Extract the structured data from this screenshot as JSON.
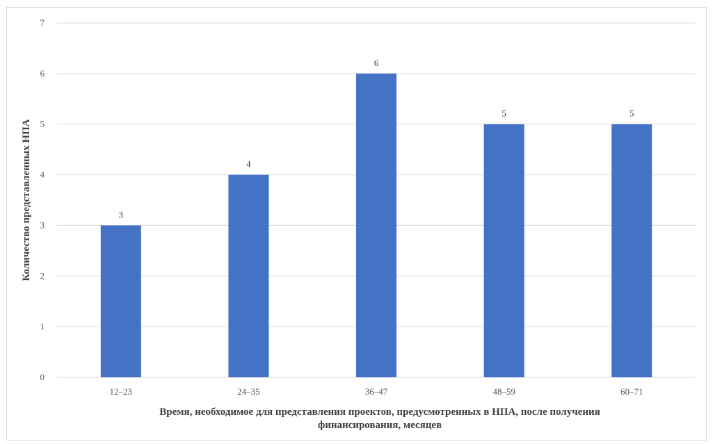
{
  "chart_data": {
    "type": "bar",
    "categories": [
      "12–23",
      "24–35",
      "36–47",
      "48–59",
      "60–71"
    ],
    "values": [
      3,
      4,
      6,
      5,
      5
    ],
    "title": "",
    "xlabel_lines": [
      "Время, необходимое для представления проектов, предусмотренных в НПА, после получения",
      "финансирования, месяцев"
    ],
    "ylabel": "Количество представленных НПА",
    "ylim": [
      0,
      7
    ],
    "yticks": [
      "0",
      "1",
      "2",
      "3",
      "4",
      "5",
      "6",
      "7"
    ],
    "grid": true,
    "legend": "none",
    "bar_color": "#4472c4",
    "grid_color": "#d9d9d9"
  }
}
